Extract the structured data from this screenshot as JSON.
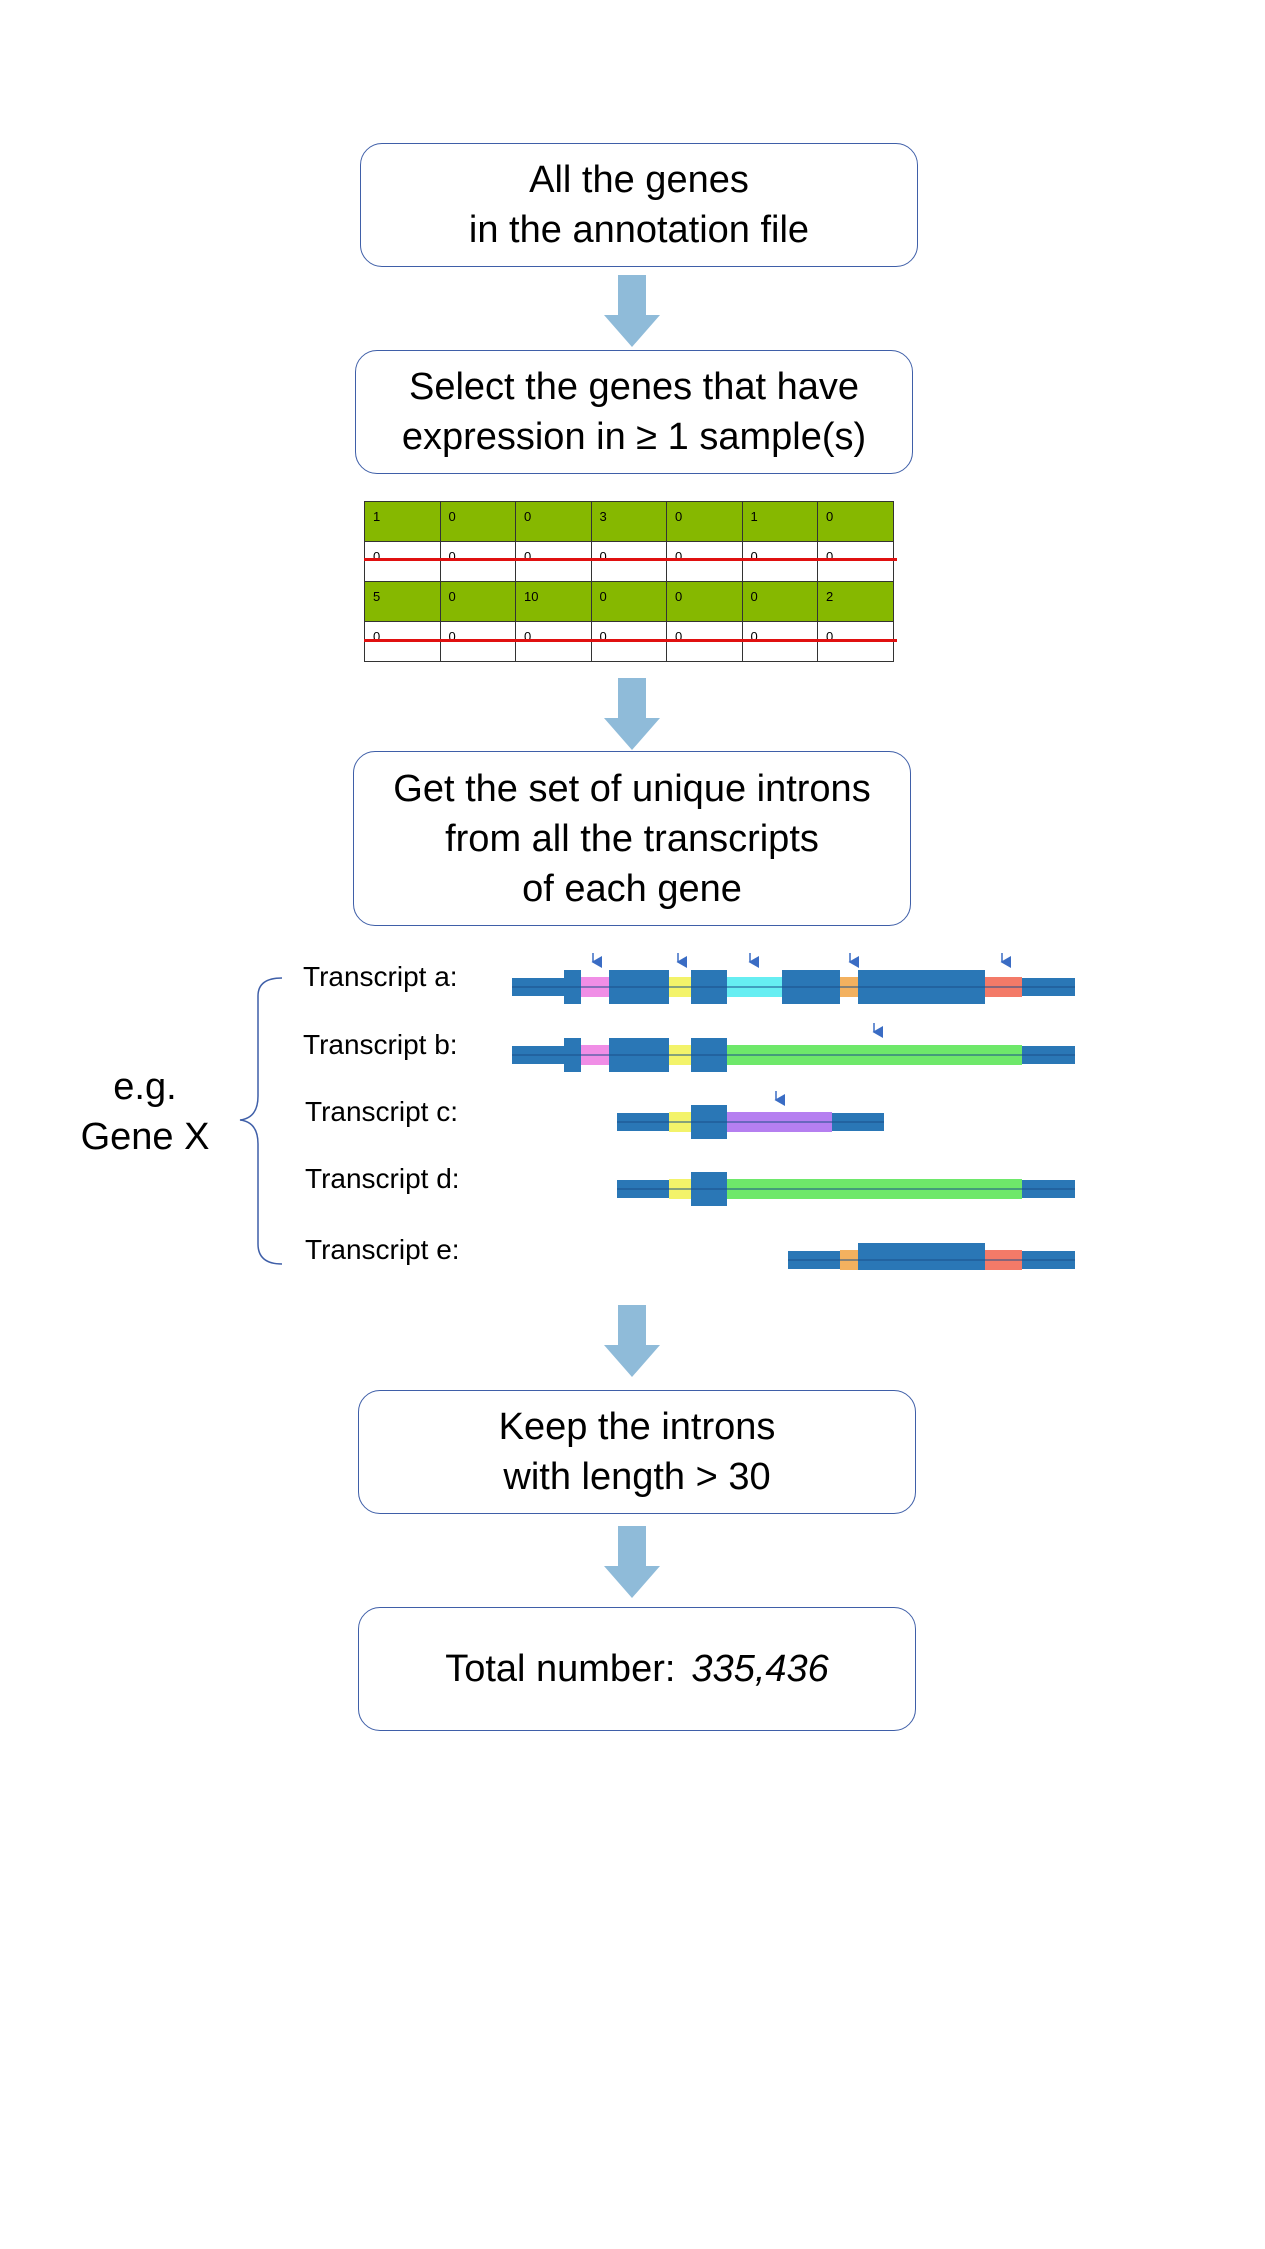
{
  "steps": {
    "step1": {
      "line1": "All the genes",
      "line2": "in the annotation file"
    },
    "step2": {
      "line1": "Select the genes that have",
      "line2": "expression in ≥ 1 sample(s)"
    },
    "step3": {
      "line1": "Get the set of unique introns",
      "line2": "from all the transcripts",
      "line3": "of each gene"
    },
    "step4": {
      "line1": "Keep the introns",
      "line2": "with length > 30"
    },
    "step5": {
      "label": "Total number:",
      "value": "335,436"
    }
  },
  "matrix": {
    "rows": [
      {
        "values": [
          "1",
          "0",
          "0",
          "3",
          "0",
          "1",
          "0"
        ],
        "kept": true
      },
      {
        "values": [
          "0",
          "0",
          "0",
          "0",
          "0",
          "0",
          "0"
        ],
        "kept": false
      },
      {
        "values": [
          "5",
          "0",
          "10",
          "0",
          "0",
          "0",
          "2"
        ],
        "kept": true
      },
      {
        "values": [
          "0",
          "0",
          "0",
          "0",
          "0",
          "0",
          "0"
        ],
        "kept": false
      }
    ],
    "kept_color": "#86b800",
    "strike_color": "#e01010"
  },
  "gene_example": {
    "line1": "e.g.",
    "line2": "Gene X"
  },
  "transcripts": [
    {
      "label": "Transcript a:"
    },
    {
      "label": "Transcript b:"
    },
    {
      "label": "Transcript c:"
    },
    {
      "label": "Transcript d:"
    },
    {
      "label": "Transcript e:"
    }
  ],
  "colors": {
    "exon": "#2a77b6",
    "arrow": "#8fbbd9",
    "box_border": "#3f5fa8",
    "intron_pink": "#f08ee6",
    "intron_yellow": "#f3f36a",
    "intron_cyan": "#66eef2",
    "intron_orange": "#f3b15f",
    "intron_red": "#f37a68",
    "intron_green": "#6ee86a",
    "intron_purple": "#b57ff0"
  }
}
